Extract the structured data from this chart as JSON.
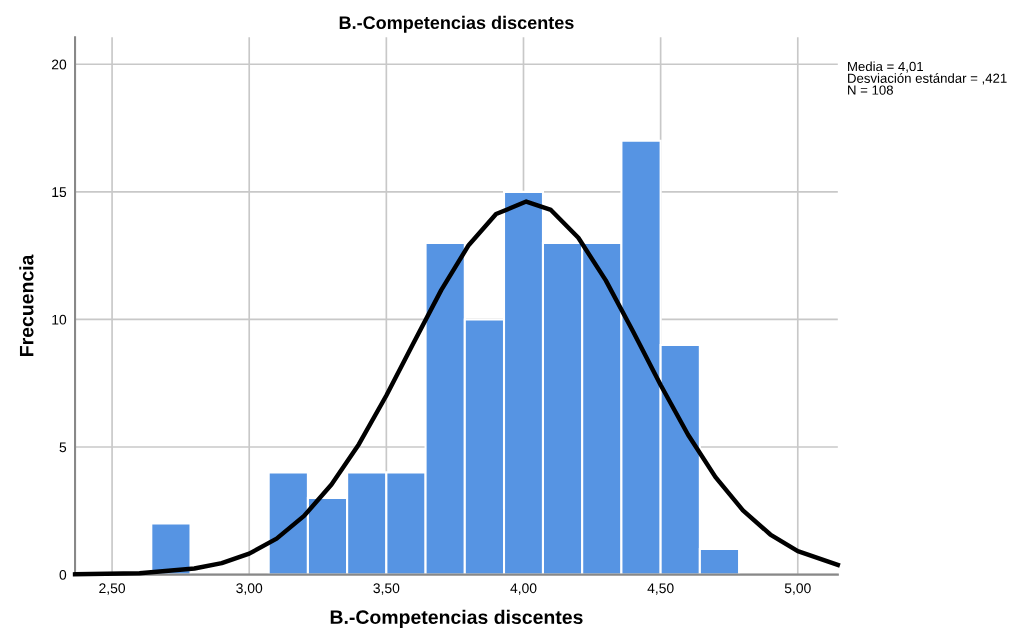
{
  "chart_data": {
    "type": "histogram",
    "title": "B.-Competencias discentes",
    "xlabel": "B.-Competencias discentes",
    "ylabel": "Frecuencia",
    "annotations": [
      "Media = 4,01\nDesviación estándar = ,421\nN = 108"
    ],
    "series": [
      {
        "type": "histogram",
        "color": "#5694e3",
        "bins": [
          2.643,
          2.786,
          2.929,
          3.071,
          3.214,
          3.357,
          3.5,
          3.643,
          3.786,
          3.929,
          4.071,
          4.214,
          4.357,
          4.5,
          4.643,
          4.786
        ],
        "values": [
          2,
          0,
          0,
          4,
          3,
          4,
          4,
          13,
          10,
          15,
          13,
          13,
          17,
          9,
          1
        ]
      },
      {
        "type": "line",
        "color": "#000000",
        "x": [
          2.365,
          2.6,
          2.8,
          2.9,
          3.0,
          3.1,
          3.2,
          3.3,
          3.4,
          3.5,
          3.6,
          3.7,
          3.8,
          3.9,
          4.01,
          4.1,
          4.2,
          4.3,
          4.4,
          4.5,
          4.6,
          4.7,
          4.8,
          4.9,
          5.0,
          5.146
        ],
        "values": [
          0.01,
          0.05,
          0.24,
          0.45,
          0.82,
          1.41,
          2.3,
          3.53,
          5.11,
          7.02,
          9.1,
          11.15,
          12.91,
          14.13,
          14.62,
          14.29,
          13.2,
          11.53,
          9.52,
          7.43,
          5.48,
          3.82,
          2.52,
          1.57,
          0.92,
          0.38
        ]
      }
    ],
    "xlim": [
      2.365,
      5.146
    ],
    "ylim": [
      0,
      21.06
    ],
    "xticks": [
      {
        "value": 2.5,
        "label": "2,50"
      },
      {
        "value": 3.0,
        "label": "3,00"
      },
      {
        "value": 3.5,
        "label": "3,50"
      },
      {
        "value": 4.0,
        "label": "4,00"
      },
      {
        "value": 4.5,
        "label": "4,50"
      },
      {
        "value": 5.0,
        "label": "5,00"
      }
    ],
    "yticks": [
      0,
      5,
      10,
      15,
      20
    ],
    "grid": true,
    "legend": false
  }
}
